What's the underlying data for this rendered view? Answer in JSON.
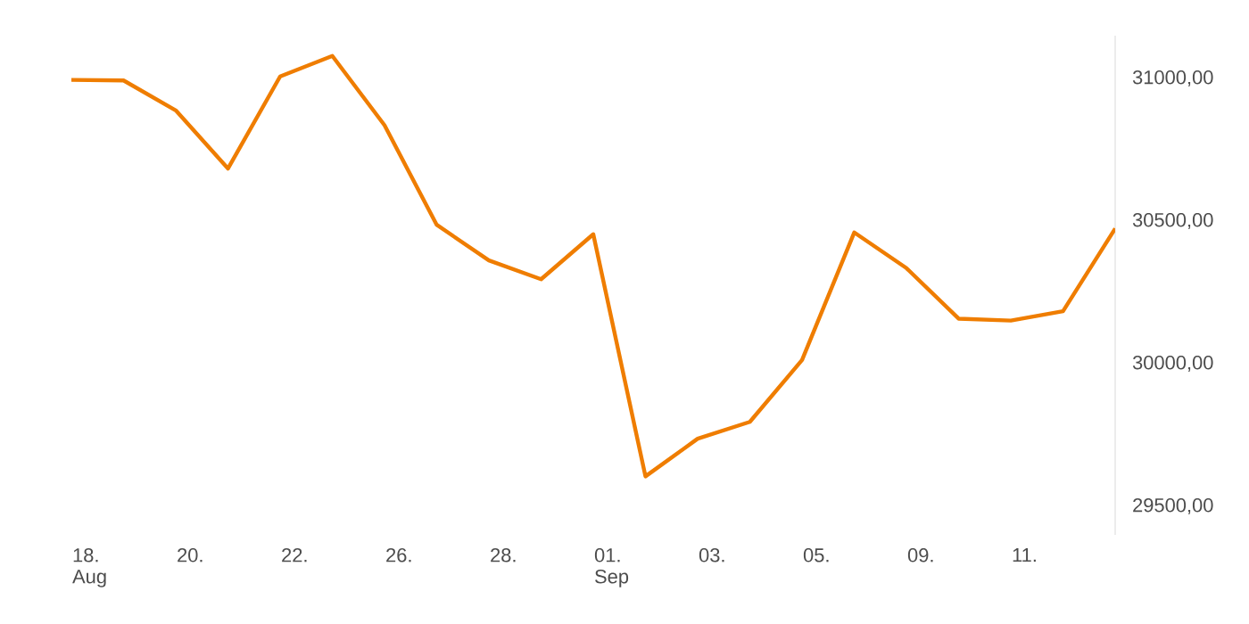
{
  "chart_data": {
    "type": "line",
    "categories": [
      "18. Aug",
      null,
      "20.",
      null,
      "22.",
      null,
      "26.",
      null,
      "28.",
      null,
      "01. Sep",
      null,
      "03.",
      null,
      "05.",
      null,
      "09.",
      null,
      "11.",
      null,
      null
    ],
    "values": [
      30995,
      30993,
      30888,
      30684,
      31007,
      31079,
      30836,
      30487,
      30362,
      30296,
      30454,
      29605,
      29737,
      29796,
      30013,
      30460,
      30335,
      30158,
      30151,
      30184,
      30474
    ],
    "color": "#ef7d00",
    "ylim": [
      29400,
      31150
    ],
    "yticks": [
      {
        "value": 29500,
        "label": "29500,00"
      },
      {
        "value": 30000,
        "label": "30000,00"
      },
      {
        "value": 30500,
        "label": "30500,00"
      },
      {
        "value": 31000,
        "label": "31000,00"
      }
    ],
    "grid": false,
    "marker": "none",
    "line_style": "solid"
  }
}
